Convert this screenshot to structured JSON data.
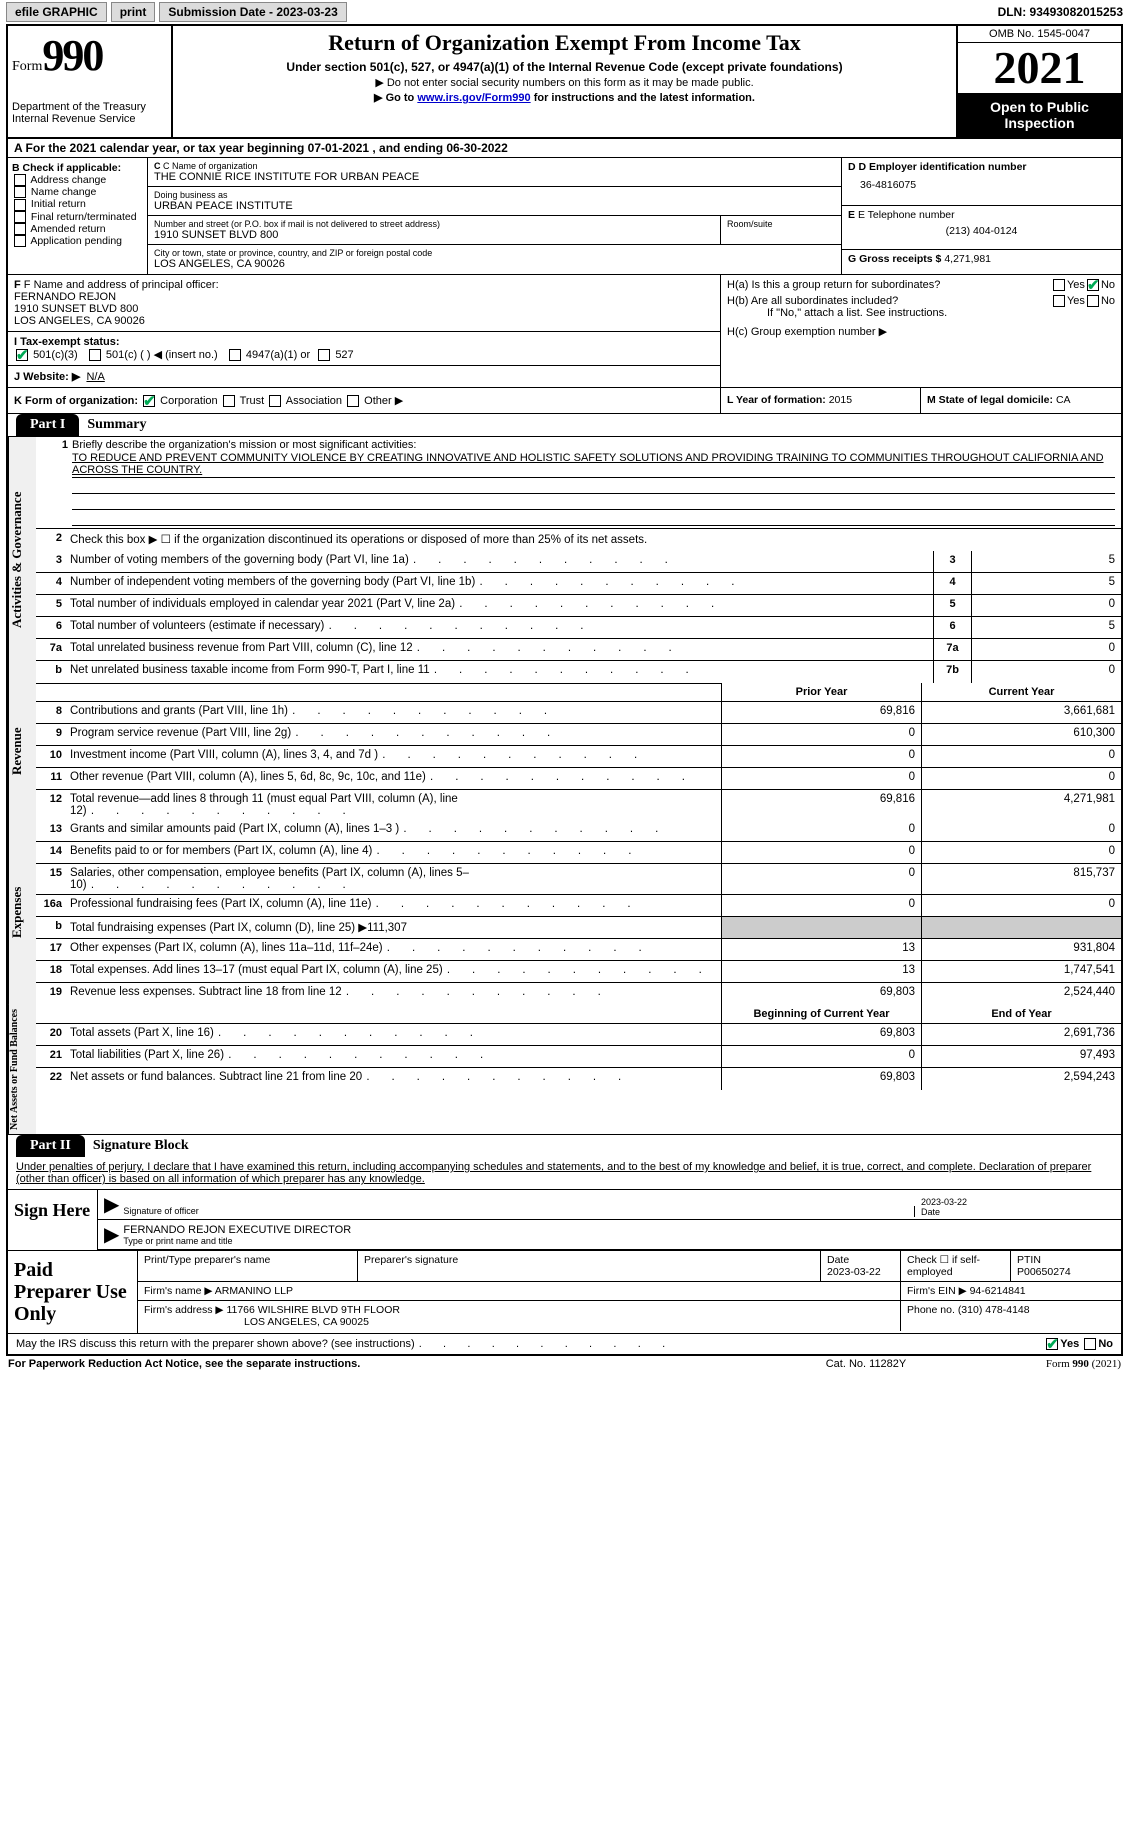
{
  "topbar": {
    "efile": "efile GRAPHIC",
    "print": "print",
    "submission_label": "Submission Date - 2023-03-23",
    "dln": "DLN: 93493082015253"
  },
  "header": {
    "form_word": "Form",
    "form_num": "990",
    "dept": "Department of the Treasury Internal Revenue Service",
    "title": "Return of Organization Exempt From Income Tax",
    "subtitle": "Under section 501(c), 527, or 4947(a)(1) of the Internal Revenue Code (except private foundations)",
    "note1": "▶ Do not enter social security numbers on this form as it may be made public.",
    "note2_pre": "▶ Go to ",
    "note2_link": "www.irs.gov/Form990",
    "note2_post": " for instructions and the latest information.",
    "omb": "OMB No. 1545-0047",
    "year": "2021",
    "inspect": "Open to Public Inspection"
  },
  "line_a": "A For the 2021 calendar year, or tax year beginning 07-01-2021    , and ending 06-30-2022",
  "col_b": {
    "label": "B Check if applicable:",
    "opts": [
      "Address change",
      "Name change",
      "Initial return",
      "Final return/terminated",
      "Amended return",
      "Application pending"
    ]
  },
  "col_c": {
    "name_lab": "C Name of organization",
    "name": "THE CONNIE RICE INSTITUTE FOR URBAN PEACE",
    "dba_lab": "Doing business as",
    "dba": "URBAN PEACE INSTITUTE",
    "street_lab": "Number and street (or P.O. box if mail is not delivered to street address)",
    "street": "1910 SUNSET BLVD 800",
    "suite_lab": "Room/suite",
    "city_lab": "City or town, state or province, country, and ZIP or foreign postal code",
    "city": "LOS ANGELES, CA  90026"
  },
  "col_d": {
    "ein_lab": "D Employer identification number",
    "ein": "36-4816075",
    "tel_lab": "E Telephone number",
    "tel": "(213) 404-0124",
    "gross_lab": "G Gross receipts $",
    "gross": "4,271,981"
  },
  "sec_f": {
    "label": "F Name and address of principal officer:",
    "name": "FERNANDO REJON",
    "street": "1910 SUNSET BLVD 800",
    "city": "LOS ANGELES, CA  90026"
  },
  "sec_h": {
    "a": "H(a)  Is this a group return for subordinates?",
    "b": "H(b)  Are all subordinates included?",
    "bnote": "If \"No,\" attach a list. See instructions.",
    "c": "H(c)  Group exemption number ▶"
  },
  "sec_i": {
    "label": "I Tax-exempt status:",
    "o501c3": "501(c)(3)",
    "o501c": "501(c) (  ) ◀ (insert no.)",
    "o4947": "4947(a)(1) or",
    "o527": "527"
  },
  "sec_j": {
    "label": "J Website: ▶",
    "val": "N/A"
  },
  "sec_k": {
    "label": "K Form of organization:",
    "corp": "Corporation",
    "trust": "Trust",
    "assoc": "Association",
    "other": "Other ▶"
  },
  "sec_l": {
    "label": "L Year of formation:",
    "val": "2015"
  },
  "sec_m": {
    "label": "M State of legal domicile:",
    "val": "CA"
  },
  "part1": {
    "tab": "Part I",
    "title": "Summary",
    "vtabs": [
      "Activities & Governance",
      "Revenue",
      "Expenses",
      "Net Assets or Fund Balances"
    ],
    "q1_lab": "Briefly describe the organization's mission or most significant activities:",
    "q1_val": "TO REDUCE AND PREVENT COMMUNITY VIOLENCE BY CREATING INNOVATIVE AND HOLISTIC SAFETY SOLUTIONS AND PROVIDING TRAINING TO COMMUNITIES THROUGHOUT CALIFORNIA AND ACROSS THE COUNTRY.",
    "q2": "Check this box ▶ ☐  if the organization discontinued its operations or disposed of more than 25% of its net assets.",
    "rows_ag": [
      {
        "n": "3",
        "d": "Number of voting members of the governing body (Part VI, line 1a)",
        "box": "3",
        "v": "5"
      },
      {
        "n": "4",
        "d": "Number of independent voting members of the governing body (Part VI, line 1b)",
        "box": "4",
        "v": "5"
      },
      {
        "n": "5",
        "d": "Total number of individuals employed in calendar year 2021 (Part V, line 2a)",
        "box": "5",
        "v": "0"
      },
      {
        "n": "6",
        "d": "Total number of volunteers (estimate if necessary)",
        "box": "6",
        "v": "5"
      },
      {
        "n": "7a",
        "d": "Total unrelated business revenue from Part VIII, column (C), line 12",
        "box": "7a",
        "v": "0"
      },
      {
        "n": "b",
        "d": "Net unrelated business taxable income from Form 990-T, Part I, line 11",
        "box": "7b",
        "v": "0"
      }
    ],
    "col_prior": "Prior Year",
    "col_curr": "Current Year",
    "rows_rev": [
      {
        "n": "8",
        "d": "Contributions and grants (Part VIII, line 1h)",
        "p": "69,816",
        "c": "3,661,681"
      },
      {
        "n": "9",
        "d": "Program service revenue (Part VIII, line 2g)",
        "p": "0",
        "c": "610,300"
      },
      {
        "n": "10",
        "d": "Investment income (Part VIII, column (A), lines 3, 4, and 7d )",
        "p": "0",
        "c": "0"
      },
      {
        "n": "11",
        "d": "Other revenue (Part VIII, column (A), lines 5, 6d, 8c, 9c, 10c, and 11e)",
        "p": "0",
        "c": "0"
      },
      {
        "n": "12",
        "d": "Total revenue—add lines 8 through 11 (must equal Part VIII, column (A), line 12)",
        "p": "69,816",
        "c": "4,271,981"
      }
    ],
    "rows_exp": [
      {
        "n": "13",
        "d": "Grants and similar amounts paid (Part IX, column (A), lines 1–3 )",
        "p": "0",
        "c": "0"
      },
      {
        "n": "14",
        "d": "Benefits paid to or for members (Part IX, column (A), line 4)",
        "p": "0",
        "c": "0"
      },
      {
        "n": "15",
        "d": "Salaries, other compensation, employee benefits (Part IX, column (A), lines 5–10)",
        "p": "0",
        "c": "815,737"
      },
      {
        "n": "16a",
        "d": "Professional fundraising fees (Part IX, column (A), line 11e)",
        "p": "0",
        "c": "0"
      },
      {
        "n": "b",
        "d": "Total fundraising expenses (Part IX, column (D), line 25) ▶111,307",
        "shade": true
      },
      {
        "n": "17",
        "d": "Other expenses (Part IX, column (A), lines 11a–11d, 11f–24e)",
        "p": "13",
        "c": "931,804"
      },
      {
        "n": "18",
        "d": "Total expenses. Add lines 13–17 (must equal Part IX, column (A), line 25)",
        "p": "13",
        "c": "1,747,541"
      },
      {
        "n": "19",
        "d": "Revenue less expenses. Subtract line 18 from line 12",
        "p": "69,803",
        "c": "2,524,440"
      }
    ],
    "col_begin": "Beginning of Current Year",
    "col_end": "End of Year",
    "rows_net": [
      {
        "n": "20",
        "d": "Total assets (Part X, line 16)",
        "p": "69,803",
        "c": "2,691,736"
      },
      {
        "n": "21",
        "d": "Total liabilities (Part X, line 26)",
        "p": "0",
        "c": "97,493"
      },
      {
        "n": "22",
        "d": "Net assets or fund balances. Subtract line 21 from line 20",
        "p": "69,803",
        "c": "2,594,243"
      }
    ]
  },
  "part2": {
    "tab": "Part II",
    "title": "Signature Block",
    "penalty": "Under penalties of perjury, I declare that I have examined this return, including accompanying schedules and statements, and to the best of my knowledge and belief, it is true, correct, and complete. Declaration of preparer (other than officer) is based on all information of which preparer has any knowledge.",
    "sign_here": "Sign Here",
    "sig_officer_date": "2023-03-22",
    "sig_officer_lab": "Signature of officer",
    "date_lab": "Date",
    "officer_name": "FERNANDO REJON  EXECUTIVE DIRECTOR",
    "officer_name_lab": "Type or print name and title",
    "paid": "Paid Preparer Use Only",
    "prep_name_lab": "Print/Type preparer's name",
    "prep_sig_lab": "Preparer's signature",
    "prep_date": "2023-03-22",
    "self_emp": "Check ☐ if self-employed",
    "ptin_lab": "PTIN",
    "ptin": "P00650274",
    "firm_name_lab": "Firm's name    ▶",
    "firm_name": "ARMANINO LLP",
    "firm_ein_lab": "Firm's EIN ▶",
    "firm_ein": "94-6214841",
    "firm_addr_lab": "Firm's address ▶",
    "firm_addr1": "11766 WILSHIRE BLVD 9TH FLOOR",
    "firm_addr2": "LOS ANGELES, CA  90025",
    "phone_lab": "Phone no.",
    "phone": "(310) 478-4148",
    "discuss": "May the IRS discuss this return with the preparer shown above? (see instructions)"
  },
  "footer": {
    "left": "For Paperwork Reduction Act Notice, see the separate instructions.",
    "mid": "Cat. No. 11282Y",
    "right": "Form 990 (2021)"
  }
}
